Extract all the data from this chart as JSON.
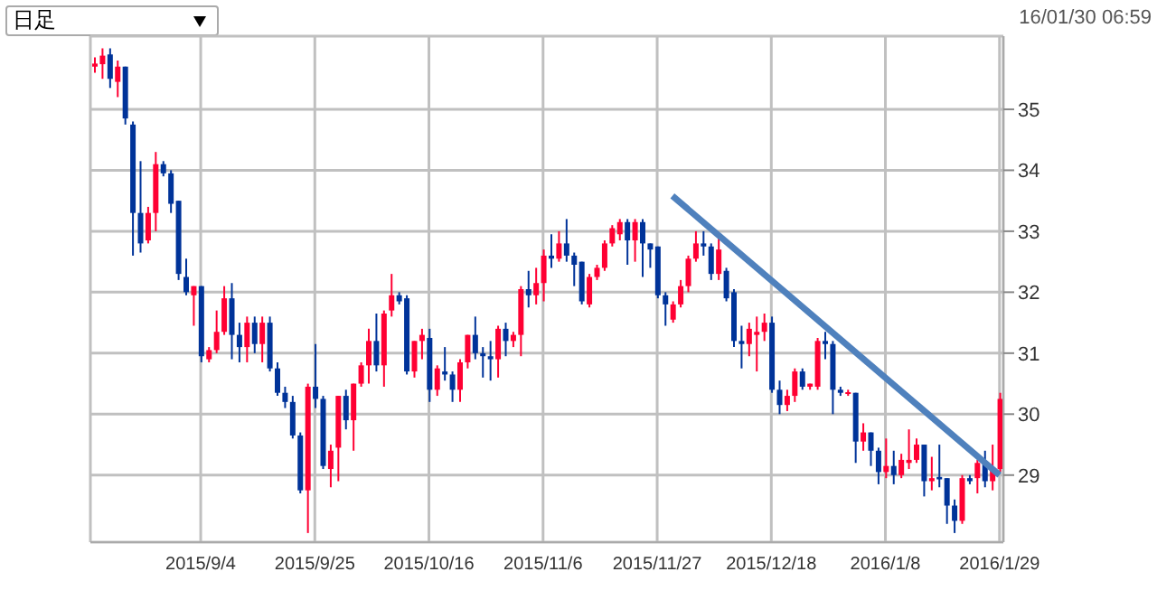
{
  "chart_data": {
    "type": "candlestick",
    "annotations": [
      "日足",
      "16/01/30 06:59"
    ],
    "categories": [
      null,
      null,
      null,
      null,
      null,
      null,
      null,
      null,
      null,
      null,
      null,
      null,
      null,
      null,
      "2015/9/4",
      null,
      null,
      null,
      null,
      null,
      null,
      null,
      null,
      null,
      null,
      null,
      null,
      null,
      null,
      "2015/9/25",
      null,
      null,
      null,
      null,
      null,
      null,
      null,
      null,
      null,
      null,
      null,
      null,
      null,
      null,
      "2015/10/16",
      null,
      null,
      null,
      null,
      null,
      null,
      null,
      null,
      null,
      null,
      null,
      null,
      null,
      null,
      "2015/11/6",
      null,
      null,
      null,
      null,
      null,
      null,
      null,
      null,
      null,
      null,
      null,
      null,
      null,
      null,
      "2015/11/27",
      null,
      null,
      null,
      null,
      null,
      null,
      null,
      null,
      null,
      null,
      null,
      null,
      null,
      null,
      "2015/12/18",
      null,
      null,
      null,
      null,
      null,
      null,
      null,
      null,
      null,
      null,
      null,
      null,
      null,
      null,
      "2016/1/8",
      null,
      null,
      null,
      null,
      null,
      null,
      null,
      null,
      null,
      null,
      null,
      null,
      null,
      null,
      "2016/1/29"
    ],
    "ohlc": [
      [
        35.7,
        35.85,
        35.6,
        35.75
      ],
      [
        35.74,
        36.0,
        35.5,
        35.88
      ],
      [
        35.9,
        36.0,
        35.35,
        35.5
      ],
      [
        35.45,
        35.8,
        35.2,
        35.7
      ],
      [
        35.7,
        35.7,
        34.75,
        34.85
      ],
      [
        34.75,
        34.8,
        32.6,
        33.3
      ],
      [
        33.3,
        34.15,
        32.65,
        32.8
      ],
      [
        32.85,
        33.4,
        32.8,
        33.3
      ],
      [
        33.3,
        34.3,
        33.0,
        34.1
      ],
      [
        34.1,
        34.15,
        33.9,
        33.95
      ],
      [
        33.95,
        34.0,
        33.3,
        33.45
      ],
      [
        33.5,
        33.5,
        32.2,
        32.3
      ],
      [
        32.25,
        32.55,
        31.95,
        32.0
      ],
      [
        31.95,
        32.1,
        31.45,
        32.1
      ],
      [
        32.1,
        32.1,
        30.85,
        30.95
      ],
      [
        30.9,
        31.1,
        30.85,
        31.05
      ],
      [
        31.05,
        31.7,
        31.0,
        31.35
      ],
      [
        31.35,
        32.1,
        31.3,
        31.9
      ],
      [
        31.9,
        32.15,
        30.9,
        31.3
      ],
      [
        31.3,
        31.5,
        30.85,
        31.1
      ],
      [
        31.1,
        31.6,
        30.85,
        31.5
      ],
      [
        31.5,
        31.6,
        31.0,
        31.15
      ],
      [
        31.15,
        31.6,
        30.85,
        31.5
      ],
      [
        31.5,
        31.6,
        30.7,
        30.75
      ],
      [
        30.75,
        30.85,
        30.3,
        30.35
      ],
      [
        30.35,
        30.45,
        30.1,
        30.2
      ],
      [
        30.2,
        30.3,
        29.6,
        29.65
      ],
      [
        29.65,
        29.7,
        28.7,
        28.75
      ],
      [
        28.75,
        30.5,
        28.05,
        30.45
      ],
      [
        30.45,
        31.15,
        30.1,
        30.25
      ],
      [
        30.25,
        30.3,
        29.1,
        29.15
      ],
      [
        29.1,
        29.5,
        28.8,
        29.4
      ],
      [
        29.45,
        30.3,
        28.9,
        30.3
      ],
      [
        30.3,
        30.4,
        29.75,
        29.9
      ],
      [
        29.9,
        30.5,
        29.4,
        30.5
      ],
      [
        30.5,
        30.85,
        30.45,
        30.8
      ],
      [
        30.8,
        31.4,
        30.5,
        31.2
      ],
      [
        31.2,
        31.65,
        30.7,
        30.8
      ],
      [
        30.8,
        31.7,
        30.45,
        31.65
      ],
      [
        31.7,
        32.3,
        31.6,
        31.95
      ],
      [
        31.95,
        32.0,
        31.8,
        31.85
      ],
      [
        31.9,
        31.95,
        30.65,
        30.7
      ],
      [
        30.7,
        31.2,
        30.6,
        31.2
      ],
      [
        31.2,
        31.4,
        30.9,
        31.3
      ],
      [
        31.25,
        31.4,
        30.2,
        30.4
      ],
      [
        30.4,
        30.8,
        30.3,
        30.75
      ],
      [
        30.7,
        31.1,
        30.55,
        30.65
      ],
      [
        30.65,
        30.7,
        30.2,
        30.4
      ],
      [
        30.4,
        30.9,
        30.2,
        30.85
      ],
      [
        30.85,
        31.3,
        30.75,
        31.3
      ],
      [
        31.3,
        31.6,
        30.9,
        31.0
      ],
      [
        31.0,
        31.1,
        30.6,
        30.95
      ],
      [
        30.95,
        31.2,
        30.55,
        30.9
      ],
      [
        30.9,
        31.45,
        30.6,
        31.4
      ],
      [
        31.4,
        31.5,
        30.95,
        31.2
      ],
      [
        31.2,
        31.35,
        31.1,
        31.3
      ],
      [
        31.3,
        32.1,
        30.95,
        32.05
      ],
      [
        32.05,
        32.35,
        31.75,
        31.95
      ],
      [
        31.95,
        32.4,
        31.8,
        32.15
      ],
      [
        32.15,
        32.7,
        31.85,
        32.6
      ],
      [
        32.6,
        32.95,
        32.4,
        32.55
      ],
      [
        32.55,
        33.0,
        32.5,
        32.8
      ],
      [
        32.8,
        33.2,
        32.5,
        32.6
      ],
      [
        32.6,
        32.65,
        32.1,
        32.45
      ],
      [
        32.5,
        32.5,
        31.8,
        31.85
      ],
      [
        31.8,
        32.3,
        31.75,
        32.25
      ],
      [
        32.25,
        32.45,
        32.2,
        32.4
      ],
      [
        32.4,
        32.85,
        32.35,
        32.8
      ],
      [
        32.8,
        33.1,
        32.75,
        33.05
      ],
      [
        32.95,
        33.2,
        32.85,
        33.15
      ],
      [
        33.15,
        33.2,
        32.45,
        32.85
      ],
      [
        32.85,
        33.2,
        32.5,
        33.15
      ],
      [
        33.15,
        33.2,
        32.25,
        32.8
      ],
      [
        32.8,
        32.8,
        32.4,
        32.7
      ],
      [
        32.75,
        32.75,
        31.9,
        31.95
      ],
      [
        31.95,
        32.0,
        31.45,
        31.8
      ],
      [
        31.55,
        31.85,
        31.5,
        31.8
      ],
      [
        31.8,
        32.2,
        31.75,
        32.1
      ],
      [
        32.1,
        32.6,
        32.0,
        32.55
      ],
      [
        32.55,
        33.0,
        32.5,
        32.8
      ],
      [
        32.8,
        33.0,
        32.6,
        32.75
      ],
      [
        32.75,
        32.8,
        32.2,
        32.3
      ],
      [
        32.3,
        32.9,
        32.2,
        32.7
      ],
      [
        32.35,
        32.4,
        31.85,
        31.9
      ],
      [
        32.0,
        32.05,
        31.1,
        31.2
      ],
      [
        31.2,
        31.45,
        30.75,
        31.15
      ],
      [
        31.15,
        31.5,
        30.95,
        31.4
      ],
      [
        31.3,
        31.6,
        30.7,
        31.35
      ],
      [
        31.35,
        31.65,
        31.2,
        31.5
      ],
      [
        31.5,
        31.6,
        30.35,
        30.4
      ],
      [
        30.4,
        30.55,
        30.0,
        30.15
      ],
      [
        30.15,
        30.4,
        30.05,
        30.3
      ],
      [
        30.3,
        30.75,
        30.2,
        30.7
      ],
      [
        30.7,
        30.75,
        30.4,
        30.45
      ],
      [
        30.45,
        30.5,
        30.4,
        30.5
      ],
      [
        30.45,
        31.25,
        30.4,
        31.2
      ],
      [
        31.2,
        31.35,
        30.9,
        31.15
      ],
      [
        31.15,
        31.2,
        30.0,
        30.4
      ],
      [
        30.4,
        30.45,
        30.3,
        30.35
      ],
      [
        30.34,
        30.4,
        30.3,
        30.36
      ],
      [
        30.35,
        30.35,
        29.2,
        29.55
      ],
      [
        29.55,
        29.85,
        29.4,
        29.7
      ],
      [
        29.7,
        29.7,
        29.15,
        29.4
      ],
      [
        29.4,
        29.45,
        28.85,
        29.05
      ],
      [
        29.05,
        29.6,
        28.95,
        29.15
      ],
      [
        29.15,
        29.4,
        28.85,
        29.0
      ],
      [
        29.0,
        29.35,
        28.95,
        29.25
      ],
      [
        29.2,
        29.75,
        29.1,
        29.25
      ],
      [
        29.25,
        29.6,
        29.2,
        29.5
      ],
      [
        29.5,
        29.5,
        28.65,
        28.9
      ],
      [
        28.9,
        29.3,
        28.75,
        28.95
      ],
      [
        28.97,
        29.5,
        28.8,
        28.93
      ],
      [
        28.95,
        28.95,
        28.2,
        28.5
      ],
      [
        28.5,
        28.6,
        28.05,
        28.25
      ],
      [
        28.25,
        29.0,
        28.2,
        28.95
      ],
      [
        28.95,
        29.0,
        28.85,
        28.9
      ],
      [
        28.95,
        29.25,
        28.7,
        29.2
      ],
      [
        29.2,
        29.4,
        28.8,
        28.9
      ],
      [
        28.9,
        29.5,
        28.75,
        29.1
      ],
      [
        29.1,
        30.35,
        29.05,
        30.25
      ]
    ],
    "colors": [
      "#ff0033",
      "#ff0033",
      "#003399",
      "#ff0033",
      "#003399",
      "#003399",
      "#003399",
      "#ff0033",
      "#ff0033",
      "#003399",
      "#003399",
      "#003399",
      "#003399",
      "#ff0033",
      "#003399",
      "#ff0033",
      "#ff0033",
      "#ff0033",
      "#003399",
      "#003399",
      "#ff0033",
      "#003399",
      "#ff0033",
      "#003399",
      "#003399",
      "#003399",
      "#003399",
      "#003399",
      "#ff0033",
      "#003399",
      "#003399",
      "#ff0033",
      "#ff0033",
      "#003399",
      "#ff0033",
      "#ff0033",
      "#ff0033",
      "#003399",
      "#ff0033",
      "#ff0033",
      "#003399",
      "#003399",
      "#ff0033",
      "#ff0033",
      "#003399",
      "#ff0033",
      "#003399",
      "#003399",
      "#ff0033",
      "#ff0033",
      "#003399",
      "#003399",
      "#003399",
      "#ff0033",
      "#003399",
      "#ff0033",
      "#ff0033",
      "#003399",
      "#ff0033",
      "#ff0033",
      "#003399",
      "#ff0033",
      "#003399",
      "#003399",
      "#003399",
      "#ff0033",
      "#ff0033",
      "#ff0033",
      "#ff0033",
      "#ff0033",
      "#003399",
      "#ff0033",
      "#003399",
      "#003399",
      "#003399",
      "#003399",
      "#ff0033",
      "#ff0033",
      "#ff0033",
      "#ff0033",
      "#003399",
      "#003399",
      "#ff0033",
      "#003399",
      "#003399",
      "#003399",
      "#ff0033",
      "#ff0033",
      "#ff0033",
      "#003399",
      "#003399",
      "#ff0033",
      "#ff0033",
      "#003399",
      "#ff0033",
      "#ff0033",
      "#003399",
      "#003399",
      "#003399",
      "#ff0033",
      "#003399",
      "#ff0033",
      "#003399",
      "#003399",
      "#ff0033",
      "#003399",
      "#ff0033",
      "#ff0033",
      "#ff0033",
      "#003399",
      "#ff0033",
      "#003399",
      "#003399",
      "#003399",
      "#ff0033",
      "#003399",
      "#ff0033",
      "#003399",
      "#ff0033",
      "#ff0033"
    ],
    "series": [
      {
        "type": "line",
        "color": "#4f81bd",
        "values": [
          null,
          null,
          null,
          null,
          null,
          null,
          null,
          null,
          null,
          null,
          null,
          null,
          null,
          null,
          null,
          null,
          null,
          null,
          null,
          null,
          null,
          null,
          null,
          null,
          null,
          null,
          null,
          null,
          null,
          null,
          null,
          null,
          null,
          null,
          null,
          null,
          null,
          null,
          null,
          null,
          null,
          null,
          null,
          null,
          null,
          null,
          null,
          null,
          null,
          null,
          null,
          null,
          null,
          null,
          null,
          null,
          null,
          null,
          null,
          null,
          null,
          null,
          null,
          null,
          null,
          null,
          null,
          null,
          null,
          null,
          null,
          null,
          null,
          null,
          null,
          null,
          33.58,
          null,
          null,
          null,
          null,
          null,
          null,
          null,
          null,
          null,
          null,
          null,
          null,
          null,
          null,
          null,
          null,
          null,
          null,
          null,
          null,
          null,
          null,
          null,
          null,
          null,
          null,
          null,
          null,
          null,
          null,
          null,
          null,
          null,
          null,
          null,
          null,
          null,
          null,
          null,
          null,
          null,
          null,
          29.0
        ]
      }
    ],
    "ylim": [
      27.9,
      36.2
    ],
    "yticks": [
      29,
      30,
      31,
      32,
      33,
      34,
      35
    ],
    "grid": true
  }
}
